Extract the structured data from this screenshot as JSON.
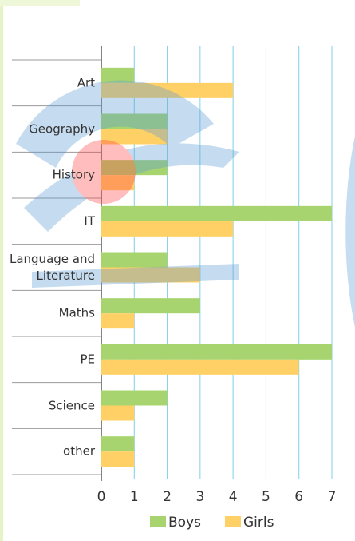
{
  "chart_data": {
    "type": "bar",
    "orientation": "horizontal",
    "categories": [
      "Art",
      "Geography",
      "History",
      "IT",
      "Language and Literature",
      "Maths",
      "PE",
      "Science",
      "other"
    ],
    "series": [
      {
        "name": "Boys",
        "color": "#a8d46f",
        "values": [
          1,
          2,
          2,
          7,
          2,
          3,
          7,
          2,
          1
        ]
      },
      {
        "name": "Girls",
        "color": "#ffd066",
        "values": [
          4,
          2,
          1,
          4,
          3,
          1,
          6,
          1,
          1
        ]
      }
    ],
    "xlim": [
      0,
      7
    ],
    "xticks": [
      0,
      1,
      2,
      3,
      4,
      5,
      6,
      7
    ],
    "grid": true,
    "legend": "bottom"
  }
}
